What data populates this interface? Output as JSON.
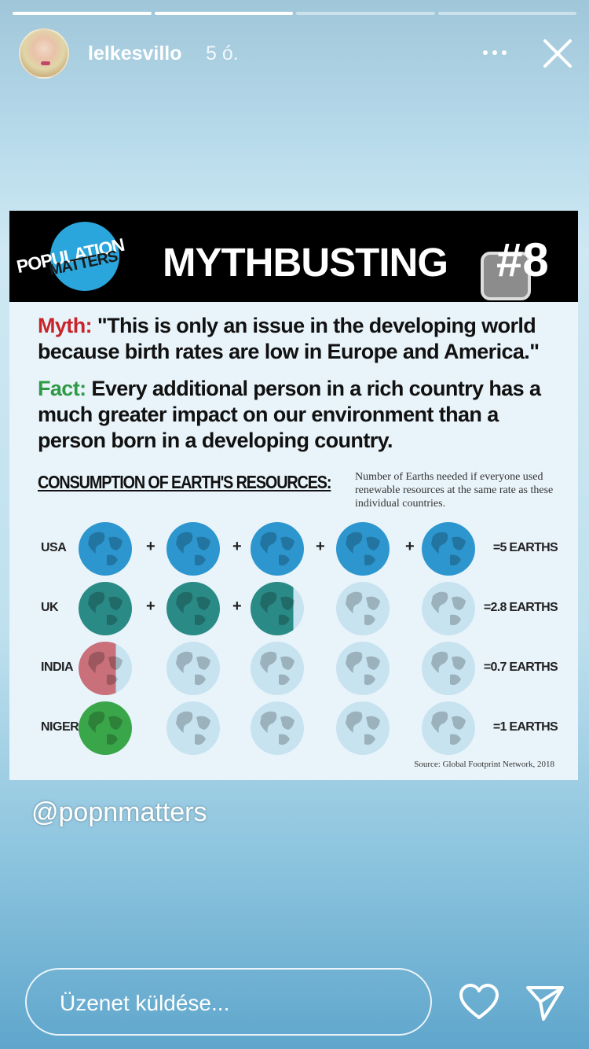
{
  "story": {
    "progress": [
      1,
      1,
      0,
      0
    ],
    "user": {
      "username": "lelkesvillo",
      "time": "5 ó."
    },
    "icons": {
      "more": "more-dots-icon",
      "close": "close-icon",
      "heart": "heart-icon",
      "send": "send-icon"
    }
  },
  "infographic": {
    "logo_line1": "POPULATION",
    "logo_line2": "MATTERS",
    "title": "MYTHBUSTING",
    "number": "#8",
    "myth_label": "Myth:",
    "myth_text": " \"This is only an issue in the developing world because birth rates are low in Europe and America.\"",
    "fact_label": "Fact:",
    "fact_text": " Every additional person in a rich country has a much greater impact on our environment than a person born in a developing country.",
    "consumption_title": "CONSUMPTION OF EARTH'S RESOURCES:",
    "consumption_note": "Number of Earths needed if everyone used renewable resources at the same rate as these individual countries.",
    "rows": [
      {
        "country": "USA",
        "total": "=5 EARTHS",
        "earths": 5,
        "color": "#2d96cf"
      },
      {
        "country": "UK",
        "total": "=2.8 EARTHS",
        "earths": 2.8,
        "color": "#2a8a86"
      },
      {
        "country": "INDIA",
        "total": "=0.7 EARTHS",
        "earths": 0.7,
        "color": "#c9707a"
      },
      {
        "country": "NIGER",
        "total": "=1 EARTHS",
        "earths": 1,
        "color": "#3aa64a"
      }
    ],
    "source": "Source: Global Footprint Network, 2018"
  },
  "caption": {
    "handle": "@popnmatters"
  },
  "reply": {
    "placeholder": "Üzenet küldése..."
  }
}
